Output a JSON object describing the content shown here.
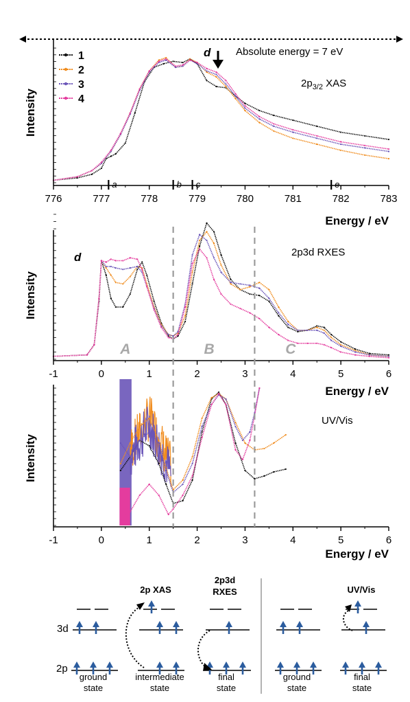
{
  "colors": {
    "series": [
      "#111111",
      "#f08c1e",
      "#6a55b8",
      "#e43c9e"
    ],
    "axis": "#000000",
    "dashed": "#9b9b9b",
    "region_label": "#a8a8a8",
    "electron": "#2b5c9e"
  },
  "chart_data": [
    {
      "type": "line",
      "title": "2p3/2 XAS",
      "title_main": "2p",
      "title_sub": "3/2",
      "title_tail": " XAS",
      "annotation": "Absolute energy = 7 eV",
      "xlabel": "Energy / eV",
      "ylabel": "Intensity",
      "xlim": [
        776,
        783
      ],
      "xticks": [
        "776",
        "777",
        "778",
        "779",
        "780",
        "781",
        "782",
        "783"
      ],
      "legend": [
        "1",
        "2",
        "3",
        "4"
      ],
      "legend_position": "top-left",
      "markers": [
        {
          "label": "a",
          "x": 777.15
        },
        {
          "label": "b",
          "x": 778.5
        },
        {
          "label": "c",
          "x": 778.9
        },
        {
          "label": "d",
          "x": 779.45
        },
        {
          "label": "e",
          "x": 781.8
        }
      ],
      "ylim": [
        0,
        1.12
      ],
      "series": [
        {
          "name": "1",
          "x": [
            776,
            776.5,
            776.8,
            777,
            777.1,
            777.2,
            777.3,
            777.5,
            777.7,
            777.9,
            778.1,
            778.3,
            778.5,
            778.7,
            778.85,
            779,
            779.2,
            779.4,
            779.6,
            779.8,
            780,
            780.3,
            780.6,
            781,
            781.5,
            782,
            782.5,
            783
          ],
          "y": [
            0.02,
            0.04,
            0.07,
            0.12,
            0.2,
            0.22,
            0.24,
            0.33,
            0.58,
            0.84,
            0.96,
            0.99,
            1.01,
            1.0,
            1.03,
            0.99,
            0.85,
            0.8,
            0.79,
            0.72,
            0.66,
            0.6,
            0.56,
            0.52,
            0.47,
            0.42,
            0.39,
            0.36
          ]
        },
        {
          "name": "2",
          "x": [
            776,
            776.5,
            776.8,
            777,
            777.2,
            777.4,
            777.6,
            777.8,
            778,
            778.2,
            778.35,
            778.55,
            778.7,
            778.85,
            779,
            779.2,
            779.4,
            779.6,
            779.8,
            780,
            780.3,
            780.6,
            781,
            781.5,
            782,
            782.5,
            783
          ],
          "y": [
            0.02,
            0.05,
            0.1,
            0.16,
            0.26,
            0.4,
            0.58,
            0.78,
            0.93,
            1.02,
            1.04,
            0.96,
            0.97,
            1.03,
            1.0,
            0.92,
            0.88,
            0.8,
            0.7,
            0.6,
            0.5,
            0.43,
            0.37,
            0.32,
            0.27,
            0.23,
            0.2
          ]
        },
        {
          "name": "3",
          "x": [
            776,
            776.5,
            776.8,
            777,
            777.2,
            777.4,
            777.6,
            777.8,
            778,
            778.2,
            778.35,
            778.55,
            778.7,
            778.85,
            779,
            779.2,
            779.4,
            779.6,
            779.8,
            780,
            780.3,
            780.6,
            781,
            781.5,
            782,
            782.5,
            783
          ],
          "y": [
            0.02,
            0.05,
            0.1,
            0.16,
            0.26,
            0.4,
            0.57,
            0.77,
            0.92,
            1.0,
            1.02,
            0.96,
            0.97,
            1.02,
            0.99,
            0.93,
            0.9,
            0.82,
            0.72,
            0.62,
            0.53,
            0.47,
            0.42,
            0.37,
            0.32,
            0.29,
            0.26
          ]
        },
        {
          "name": "4",
          "x": [
            776,
            776.5,
            776.8,
            777,
            777.2,
            777.4,
            777.6,
            777.8,
            778,
            778.2,
            778.35,
            778.55,
            778.7,
            778.85,
            779,
            779.2,
            779.4,
            779.6,
            779.8,
            780,
            780.3,
            780.6,
            781,
            781.5,
            782,
            782.5,
            783
          ],
          "y": [
            0.02,
            0.05,
            0.1,
            0.17,
            0.27,
            0.41,
            0.58,
            0.78,
            0.93,
            1.01,
            1.03,
            0.97,
            0.98,
            1.02,
            1.0,
            0.95,
            0.92,
            0.85,
            0.74,
            0.64,
            0.55,
            0.49,
            0.44,
            0.39,
            0.34,
            0.31,
            0.28
          ]
        }
      ]
    },
    {
      "type": "line",
      "title": "2p3d RXES",
      "xlabel": "Energy / eV",
      "ylabel": "Intensity",
      "xlim": [
        -1,
        6
      ],
      "xticks": [
        "-1",
        "0",
        "1",
        "2",
        "3",
        "4",
        "5",
        "6"
      ],
      "ylim": [
        0,
        1.0
      ],
      "marker_label": "d",
      "regions": [
        "A",
        "B",
        "C"
      ],
      "dashed_lines_x": [
        1.5,
        3.2
      ],
      "series": [
        {
          "name": "1",
          "x": [
            -1,
            -0.3,
            -0.15,
            -0.05,
            0,
            0.1,
            0.2,
            0.3,
            0.45,
            0.6,
            0.75,
            0.85,
            0.95,
            1.1,
            1.25,
            1.4,
            1.5,
            1.6,
            1.75,
            1.9,
            2.05,
            2.2,
            2.35,
            2.5,
            2.7,
            2.9,
            3.1,
            3.3,
            3.5,
            3.7,
            3.9,
            4.1,
            4.3,
            4.5,
            4.65,
            4.8,
            5.0,
            5.3,
            5.6,
            6.0
          ],
          "y": [
            0.02,
            0.03,
            0.1,
            0.4,
            0.68,
            0.58,
            0.42,
            0.36,
            0.36,
            0.45,
            0.62,
            0.67,
            0.58,
            0.4,
            0.25,
            0.16,
            0.14,
            0.16,
            0.26,
            0.52,
            0.78,
            0.94,
            0.88,
            0.72,
            0.55,
            0.48,
            0.45,
            0.44,
            0.4,
            0.3,
            0.22,
            0.19,
            0.2,
            0.23,
            0.22,
            0.17,
            0.12,
            0.07,
            0.04,
            0.03
          ]
        },
        {
          "name": "2",
          "x": [
            -1,
            -0.3,
            -0.15,
            -0.05,
            0,
            0.1,
            0.2,
            0.3,
            0.45,
            0.6,
            0.75,
            0.85,
            0.95,
            1.1,
            1.25,
            1.4,
            1.5,
            1.6,
            1.75,
            1.9,
            2.05,
            2.2,
            2.35,
            2.5,
            2.7,
            2.9,
            3.1,
            3.3,
            3.5,
            3.7,
            3.9,
            4.1,
            4.3,
            4.5,
            4.65,
            4.8,
            5.0,
            5.3,
            5.6,
            6.0
          ],
          "y": [
            0.02,
            0.03,
            0.1,
            0.42,
            0.68,
            0.63,
            0.58,
            0.53,
            0.52,
            0.57,
            0.64,
            0.63,
            0.52,
            0.36,
            0.24,
            0.17,
            0.16,
            0.18,
            0.3,
            0.6,
            0.82,
            0.88,
            0.8,
            0.65,
            0.52,
            0.48,
            0.5,
            0.53,
            0.48,
            0.36,
            0.26,
            0.2,
            0.2,
            0.22,
            0.2,
            0.15,
            0.1,
            0.06,
            0.03,
            0.02
          ]
        },
        {
          "name": "3",
          "x": [
            -1,
            -0.3,
            -0.15,
            -0.05,
            0,
            0.1,
            0.2,
            0.3,
            0.45,
            0.6,
            0.75,
            0.85,
            0.95,
            1.1,
            1.25,
            1.4,
            1.5,
            1.6,
            1.75,
            1.9,
            2.05,
            2.2,
            2.35,
            2.5,
            2.7,
            2.9,
            3.1,
            3.3,
            3.5,
            3.7,
            3.9,
            4.1,
            4.3,
            4.5,
            4.65,
            4.8,
            5.0,
            5.3,
            5.6,
            6.0
          ],
          "y": [
            0.02,
            0.03,
            0.1,
            0.42,
            0.68,
            0.64,
            0.64,
            0.63,
            0.62,
            0.63,
            0.64,
            0.6,
            0.5,
            0.35,
            0.23,
            0.17,
            0.16,
            0.19,
            0.38,
            0.72,
            0.86,
            0.82,
            0.7,
            0.6,
            0.53,
            0.52,
            0.51,
            0.49,
            0.42,
            0.32,
            0.24,
            0.2,
            0.2,
            0.2,
            0.18,
            0.13,
            0.09,
            0.05,
            0.03,
            0.02
          ]
        },
        {
          "name": "4",
          "x": [
            -1,
            -0.3,
            -0.15,
            -0.05,
            0,
            0.1,
            0.2,
            0.3,
            0.45,
            0.6,
            0.75,
            0.85,
            0.95,
            1.1,
            1.25,
            1.4,
            1.5,
            1.6,
            1.75,
            1.9,
            2.05,
            2.2,
            2.35,
            2.5,
            2.7,
            2.9,
            3.1,
            3.3,
            3.5,
            3.7,
            3.9,
            4.1,
            4.3,
            4.5,
            4.65,
            4.8,
            5.0,
            5.3,
            5.6,
            6.0
          ],
          "y": [
            0.02,
            0.03,
            0.1,
            0.42,
            0.68,
            0.67,
            0.69,
            0.68,
            0.68,
            0.7,
            0.69,
            0.62,
            0.5,
            0.34,
            0.22,
            0.15,
            0.14,
            0.17,
            0.36,
            0.66,
            0.76,
            0.7,
            0.55,
            0.45,
            0.38,
            0.35,
            0.32,
            0.28,
            0.22,
            0.17,
            0.13,
            0.11,
            0.11,
            0.11,
            0.1,
            0.08,
            0.05,
            0.03,
            0.02,
            0.01
          ]
        }
      ]
    },
    {
      "type": "line",
      "title": "UV/Vis",
      "xlabel": "Energy / eV",
      "ylabel": "Intensity",
      "xlim": [
        -1,
        6
      ],
      "xticks": [
        "-1",
        "0",
        "1",
        "2",
        "3",
        "4",
        "5",
        "6"
      ],
      "ylim": [
        0,
        1.0
      ],
      "dashed_lines_x": [
        1.5,
        3.2
      ],
      "series": [
        {
          "name": "1",
          "x": [
            0.4,
            0.6,
            0.8,
            1.0,
            1.2,
            1.35,
            1.5,
            1.7,
            1.9,
            2.1,
            2.3,
            2.45,
            2.6,
            2.8,
            3.0,
            3.2,
            3.4,
            3.6,
            3.85
          ],
          "y": [
            0.4,
            0.5,
            0.62,
            0.58,
            0.45,
            0.3,
            0.16,
            0.18,
            0.33,
            0.68,
            0.92,
            0.97,
            0.88,
            0.6,
            0.4,
            0.34,
            0.36,
            0.39,
            0.41
          ]
        },
        {
          "name": "2",
          "x": [
            0.4,
            0.6,
            0.8,
            1.0,
            1.2,
            1.35,
            1.5,
            1.7,
            1.9,
            2.1,
            2.3,
            2.45,
            2.6,
            2.8,
            3.0,
            3.2,
            3.4,
            3.6,
            3.85
          ],
          "y": [
            0.45,
            0.6,
            0.72,
            0.78,
            0.62,
            0.42,
            0.26,
            0.33,
            0.5,
            0.78,
            0.93,
            0.96,
            0.92,
            0.75,
            0.6,
            0.55,
            0.56,
            0.6,
            0.66
          ]
        },
        {
          "name": "3",
          "x": [
            0.4,
            0.6,
            0.8,
            1.0,
            1.2,
            1.35,
            1.5,
            1.7,
            1.9,
            2.1,
            2.3,
            2.45,
            2.6,
            2.8,
            2.95,
            3.1,
            3.2,
            3.3
          ],
          "y": [
            0.6,
            0.5,
            0.62,
            0.68,
            0.6,
            0.4,
            0.24,
            0.3,
            0.45,
            0.72,
            0.88,
            0.95,
            0.92,
            0.72,
            0.62,
            0.68,
            0.82,
            1.0
          ]
        },
        {
          "name": "4",
          "x": [
            0.4,
            0.6,
            0.8,
            1.0,
            1.2,
            1.4,
            1.5,
            1.7,
            1.9,
            2.1,
            2.3,
            2.45,
            2.6,
            2.8,
            2.95,
            3.1,
            3.2,
            3.3
          ],
          "y": [
            0.04,
            0.1,
            0.22,
            0.3,
            0.22,
            0.08,
            0.12,
            0.22,
            0.36,
            0.64,
            0.88,
            0.96,
            0.88,
            0.55,
            0.48,
            0.62,
            0.8,
            1.0
          ]
        }
      ]
    }
  ],
  "diagram": {
    "labels": {
      "3d": "3d",
      "2p": "2p",
      "xas": "2p XAS",
      "rxes_line1": "2p3d",
      "rxes_line2": "RXES",
      "uvvis": "UV/Vis",
      "ground1": "ground",
      "ground2": "state",
      "intermediate1": "intermediate",
      "intermediate2": "state",
      "final1": "final",
      "final2": "state"
    }
  }
}
